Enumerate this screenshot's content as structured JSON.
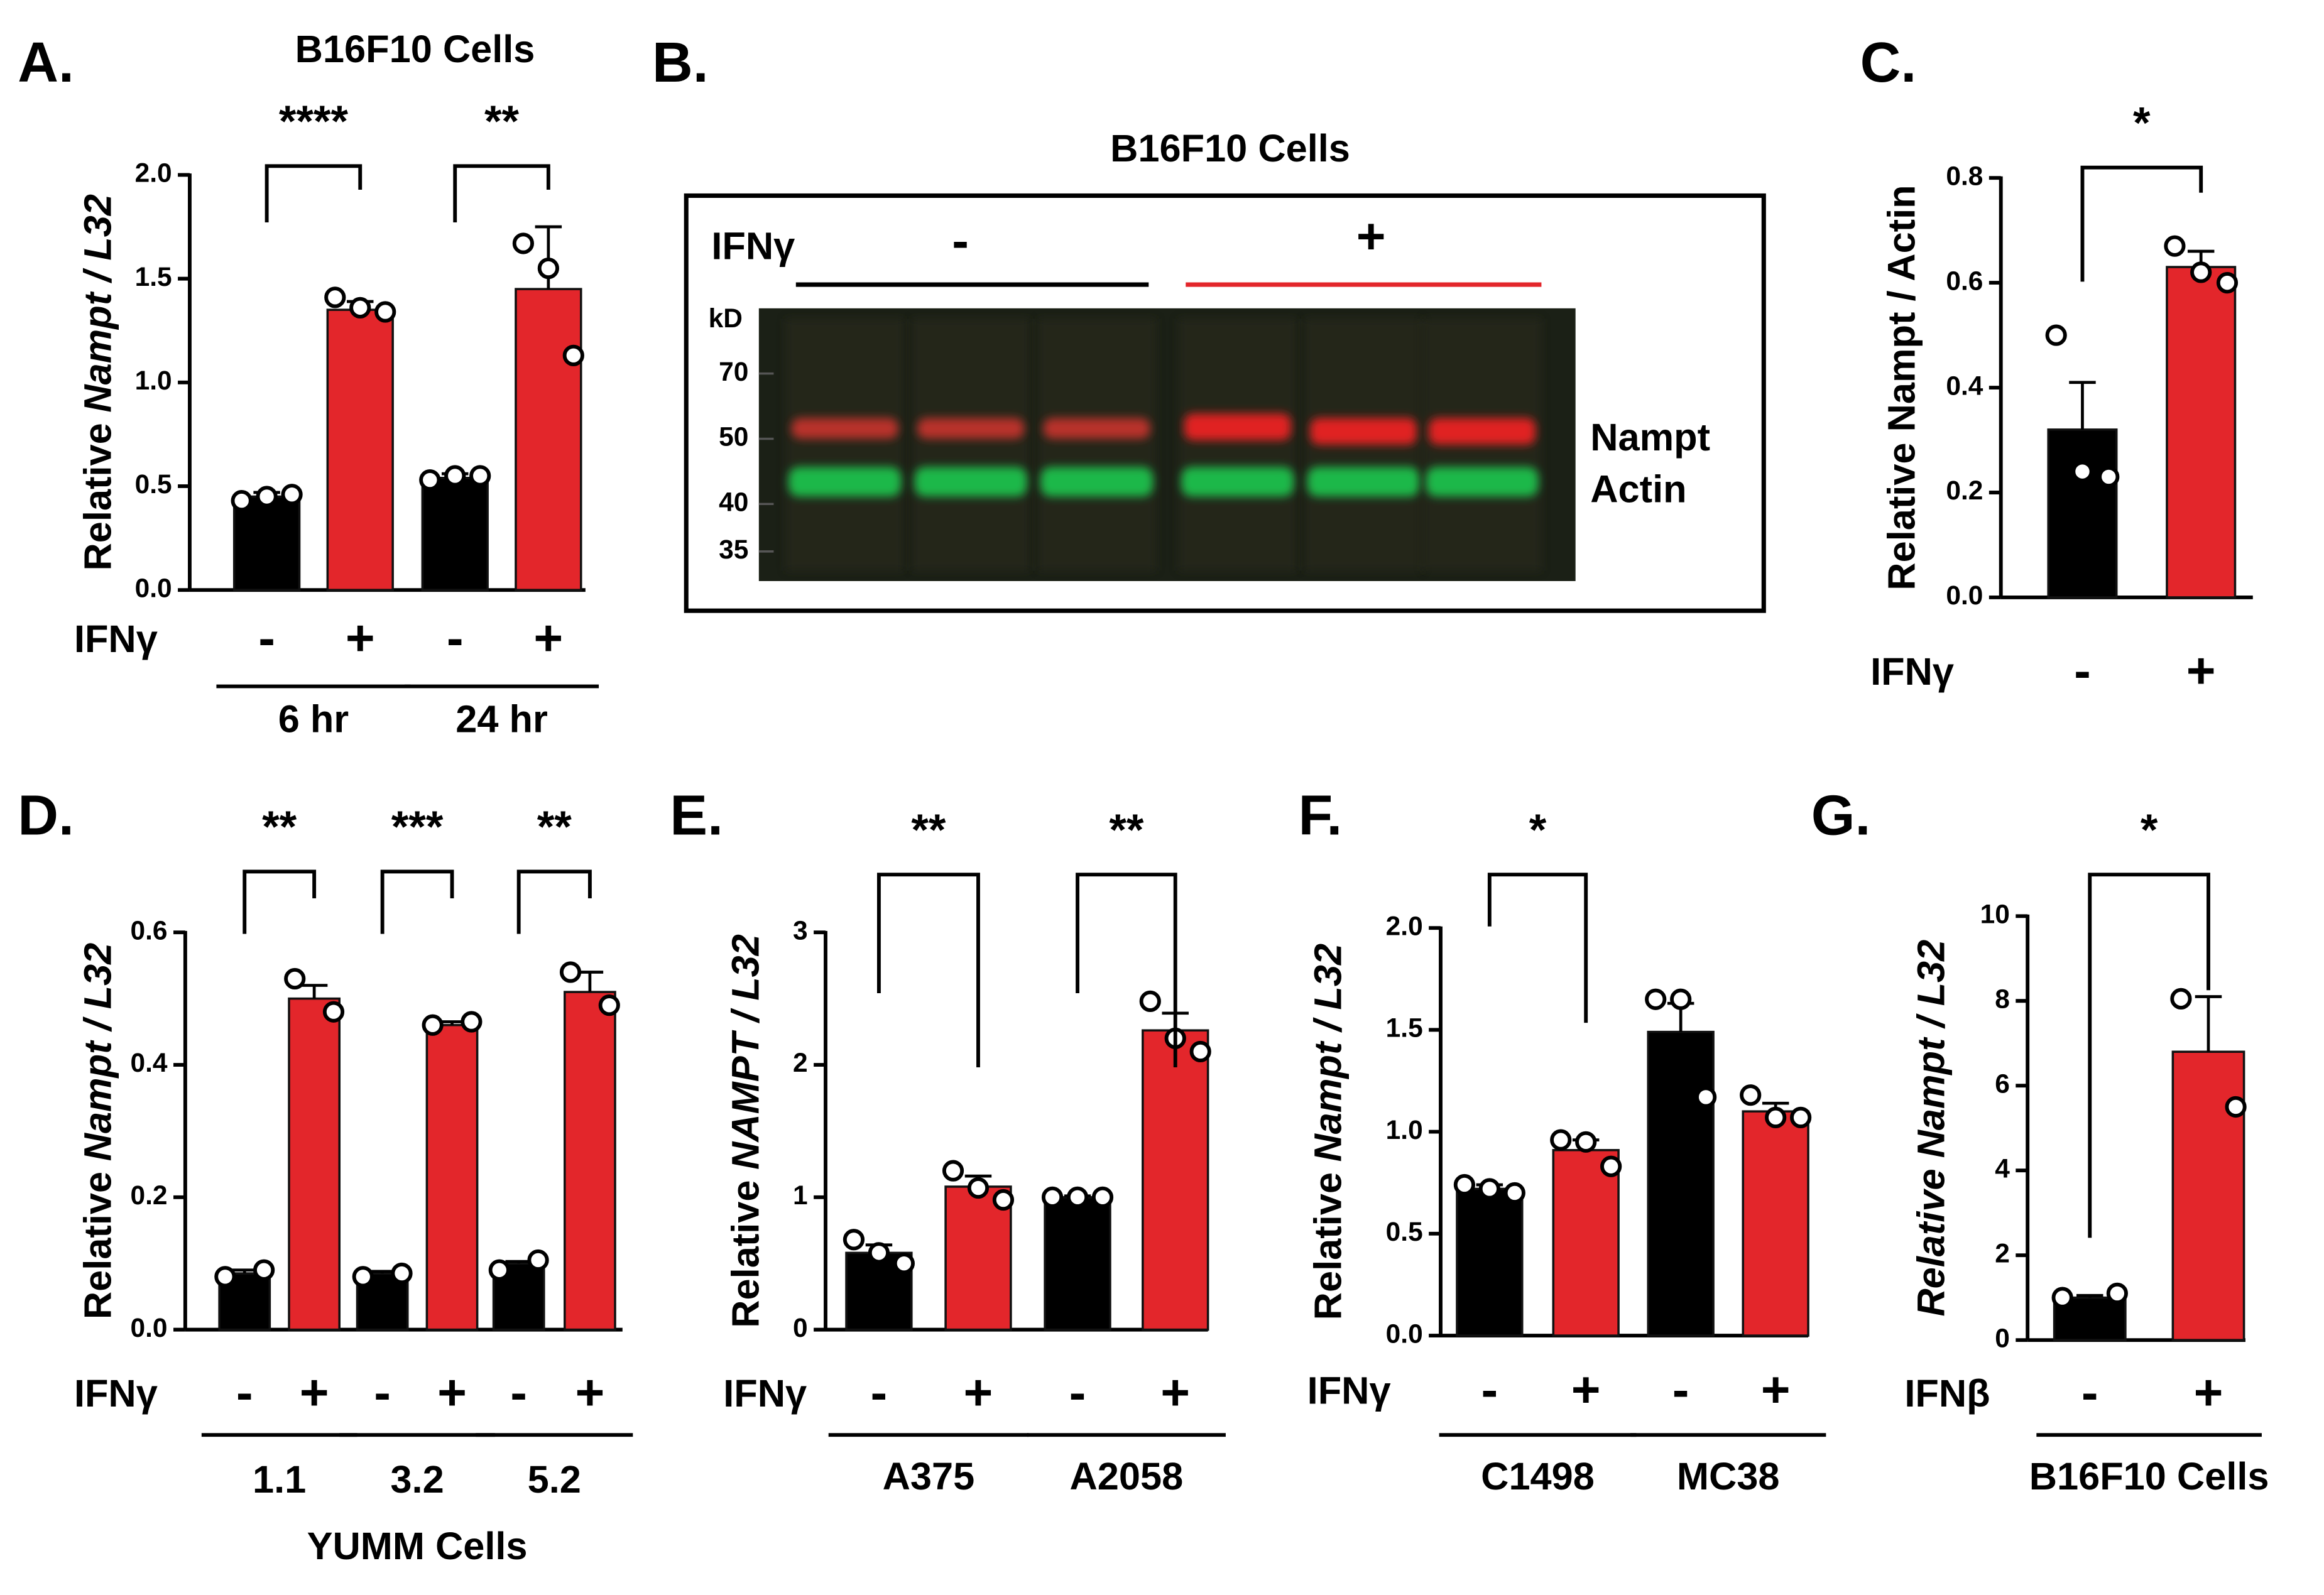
{
  "chart_data": [
    {
      "type": "bar",
      "panel": "A.",
      "title": "B16F10 Cells",
      "ylabel": "Relative",
      "ylabel_italic": "Nampt / L32",
      "treatment": "IFNγ",
      "categories": [
        "-",
        "+",
        "-",
        "+"
      ],
      "groups": [
        "6 hr",
        "24 hr"
      ],
      "values": [
        0.45,
        1.35,
        0.54,
        1.45
      ],
      "errors": [
        0.02,
        0.04,
        0.02,
        0.3
      ],
      "points": [
        [
          0.43,
          0.45,
          0.46
        ],
        [
          1.41,
          1.36,
          1.34
        ],
        [
          0.53,
          0.55,
          0.55
        ],
        [
          1.67,
          1.55,
          1.13
        ]
      ],
      "colors": [
        "#000000",
        "#e3262b",
        "#000000",
        "#e3262b"
      ],
      "ylim": [
        0,
        2
      ],
      "yticks": [
        {
          "value": 0,
          "label": "0.0"
        },
        {
          "value": 0.5,
          "label": "0.5"
        },
        {
          "value": 1,
          "label": "1.0"
        },
        {
          "value": 1.5,
          "label": "1.5"
        },
        {
          "value": 2,
          "label": "2.0"
        }
      ],
      "annotations": [
        "****",
        "**"
      ]
    },
    {
      "type": "bar",
      "panel": "C.",
      "ylabel": "Relative Nampt / Actin",
      "treatment": "IFNγ",
      "categories": [
        "-",
        "+"
      ],
      "values": [
        0.32,
        0.63
      ],
      "errors": [
        0.09,
        0.03
      ],
      "points": [
        [
          0.5,
          0.24,
          0.23
        ],
        [
          0.67,
          0.62,
          0.6
        ]
      ],
      "colors": [
        "#000000",
        "#e3262b"
      ],
      "ylim": [
        0,
        0.8
      ],
      "yticks": [
        {
          "value": 0,
          "label": "0.0"
        },
        {
          "value": 0.2,
          "label": "0.2"
        },
        {
          "value": 0.4,
          "label": "0.4"
        },
        {
          "value": 0.6,
          "label": "0.6"
        },
        {
          "value": 0.8,
          "label": "0.8"
        }
      ],
      "annotations": [
        "*"
      ]
    },
    {
      "type": "bar",
      "panel": "D.",
      "ylabel": "Relative",
      "ylabel_italic": "Nampt / L32",
      "treatment": "IFNγ",
      "categories": [
        "-",
        "+",
        "-",
        "+",
        "-",
        "+"
      ],
      "groups": [
        "1.1",
        "3.2",
        "5.2"
      ],
      "xlabel": "YUMM Cells",
      "values": [
        0.085,
        0.5,
        0.085,
        0.46,
        0.1,
        0.51
      ],
      "errors": [
        0.005,
        0.02,
        0.003,
        0.005,
        0.003,
        0.03
      ],
      "points": [
        [
          0.08,
          0.09
        ],
        [
          0.53,
          0.48
        ],
        [
          0.08,
          0.085
        ],
        [
          0.46,
          0.465
        ],
        [
          0.09,
          0.105
        ],
        [
          0.54,
          0.49
        ]
      ],
      "colors": [
        "#000000",
        "#e3262b",
        "#000000",
        "#e3262b",
        "#000000",
        "#e3262b"
      ],
      "ylim": [
        0,
        0.6
      ],
      "yticks": [
        {
          "value": 0,
          "label": "0.0"
        },
        {
          "value": 0.2,
          "label": "0.2"
        },
        {
          "value": 0.4,
          "label": "0.4"
        },
        {
          "value": 0.6,
          "label": "0.6"
        }
      ],
      "annotations": [
        "**",
        "***",
        "**"
      ]
    },
    {
      "type": "bar",
      "panel": "E.",
      "ylabel": "Relative",
      "ylabel_italic": "NAMPT / L32",
      "treatment": "IFNγ",
      "categories": [
        "-",
        "+",
        "-",
        "+"
      ],
      "groups": [
        "A375",
        "A2058"
      ],
      "values": [
        0.58,
        1.08,
        1.0,
        2.26
      ],
      "errors": [
        0.06,
        0.08,
        0.01,
        0.13
      ],
      "points": [
        [
          0.68,
          0.58,
          0.5
        ],
        [
          1.2,
          1.07,
          0.98
        ],
        [
          1.0,
          1.0,
          1.0
        ],
        [
          2.48,
          2.2,
          2.1
        ]
      ],
      "colors": [
        "#000000",
        "#e3262b",
        "#000000",
        "#e3262b"
      ],
      "ylim": [
        0,
        3
      ],
      "yticks": [
        0,
        1,
        2,
        3
      ],
      "annotations": [
        "**",
        "**"
      ]
    },
    {
      "type": "bar",
      "panel": "F.",
      "ylabel": "Relative",
      "ylabel_italic": "Nampt / L32",
      "treatment": "IFNγ",
      "categories": [
        "-",
        "+",
        "-",
        "+"
      ],
      "groups": [
        "C1498",
        "MC38"
      ],
      "values": [
        0.72,
        0.91,
        1.49,
        1.1
      ],
      "errors": [
        0.02,
        0.05,
        0.14,
        0.04
      ],
      "points": [
        [
          0.74,
          0.72,
          0.7
        ],
        [
          0.96,
          0.95,
          0.83
        ],
        [
          1.65,
          1.65,
          1.17
        ],
        [
          1.18,
          1.07,
          1.07
        ]
      ],
      "colors": [
        "#000000",
        "#e3262b",
        "#000000",
        "#e3262b"
      ],
      "ylim": [
        0,
        2
      ],
      "yticks": [
        {
          "value": 0,
          "label": "0.0"
        },
        {
          "value": 0.5,
          "label": "0.5"
        },
        {
          "value": 1,
          "label": "1.0"
        },
        {
          "value": 1.5,
          "label": "1.5"
        },
        {
          "value": 2,
          "label": "2.0"
        }
      ],
      "annotations": [
        "*"
      ]
    },
    {
      "type": "bar",
      "panel": "G.",
      "ylabel_italic": "Relative Nampt / L32",
      "treatment": "IFNβ",
      "categories": [
        "-",
        "+"
      ],
      "groups": [
        "B16F10 Cells"
      ],
      "values": [
        1.0,
        6.8
      ],
      "errors": [
        0.05,
        1.3
      ],
      "points": [
        [
          1.0,
          1.1
        ],
        [
          8.05,
          5.5
        ]
      ],
      "colors": [
        "#000000",
        "#e3262b"
      ],
      "ylim": [
        0,
        10
      ],
      "yticks": [
        0,
        2,
        4,
        6,
        8,
        10
      ],
      "annotations": [
        "*"
      ]
    }
  ],
  "blot": {
    "panel": "B.",
    "title": "B16F10 Cells",
    "treatment": "IFNγ",
    "conditions": [
      "-",
      "+"
    ],
    "markers_label": "kD",
    "markers": [
      70,
      50,
      40,
      35
    ],
    "bands": [
      "Nampt",
      "Actin"
    ]
  }
}
